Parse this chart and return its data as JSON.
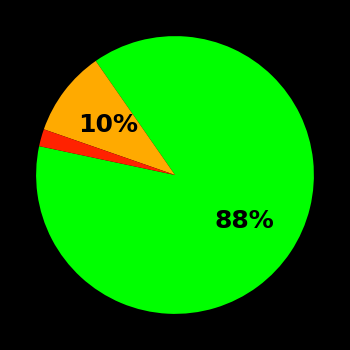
{
  "slices": [
    88,
    10,
    2
  ],
  "colors": [
    "#00ff00",
    "#ffaa00",
    "#ff2200"
  ],
  "labels": [
    "88%",
    "10%",
    ""
  ],
  "background_color": "#000000",
  "label_fontsize": 18,
  "label_color": "#000000",
  "startangle": 168,
  "figsize": [
    3.5,
    3.5
  ],
  "dpi": 100
}
